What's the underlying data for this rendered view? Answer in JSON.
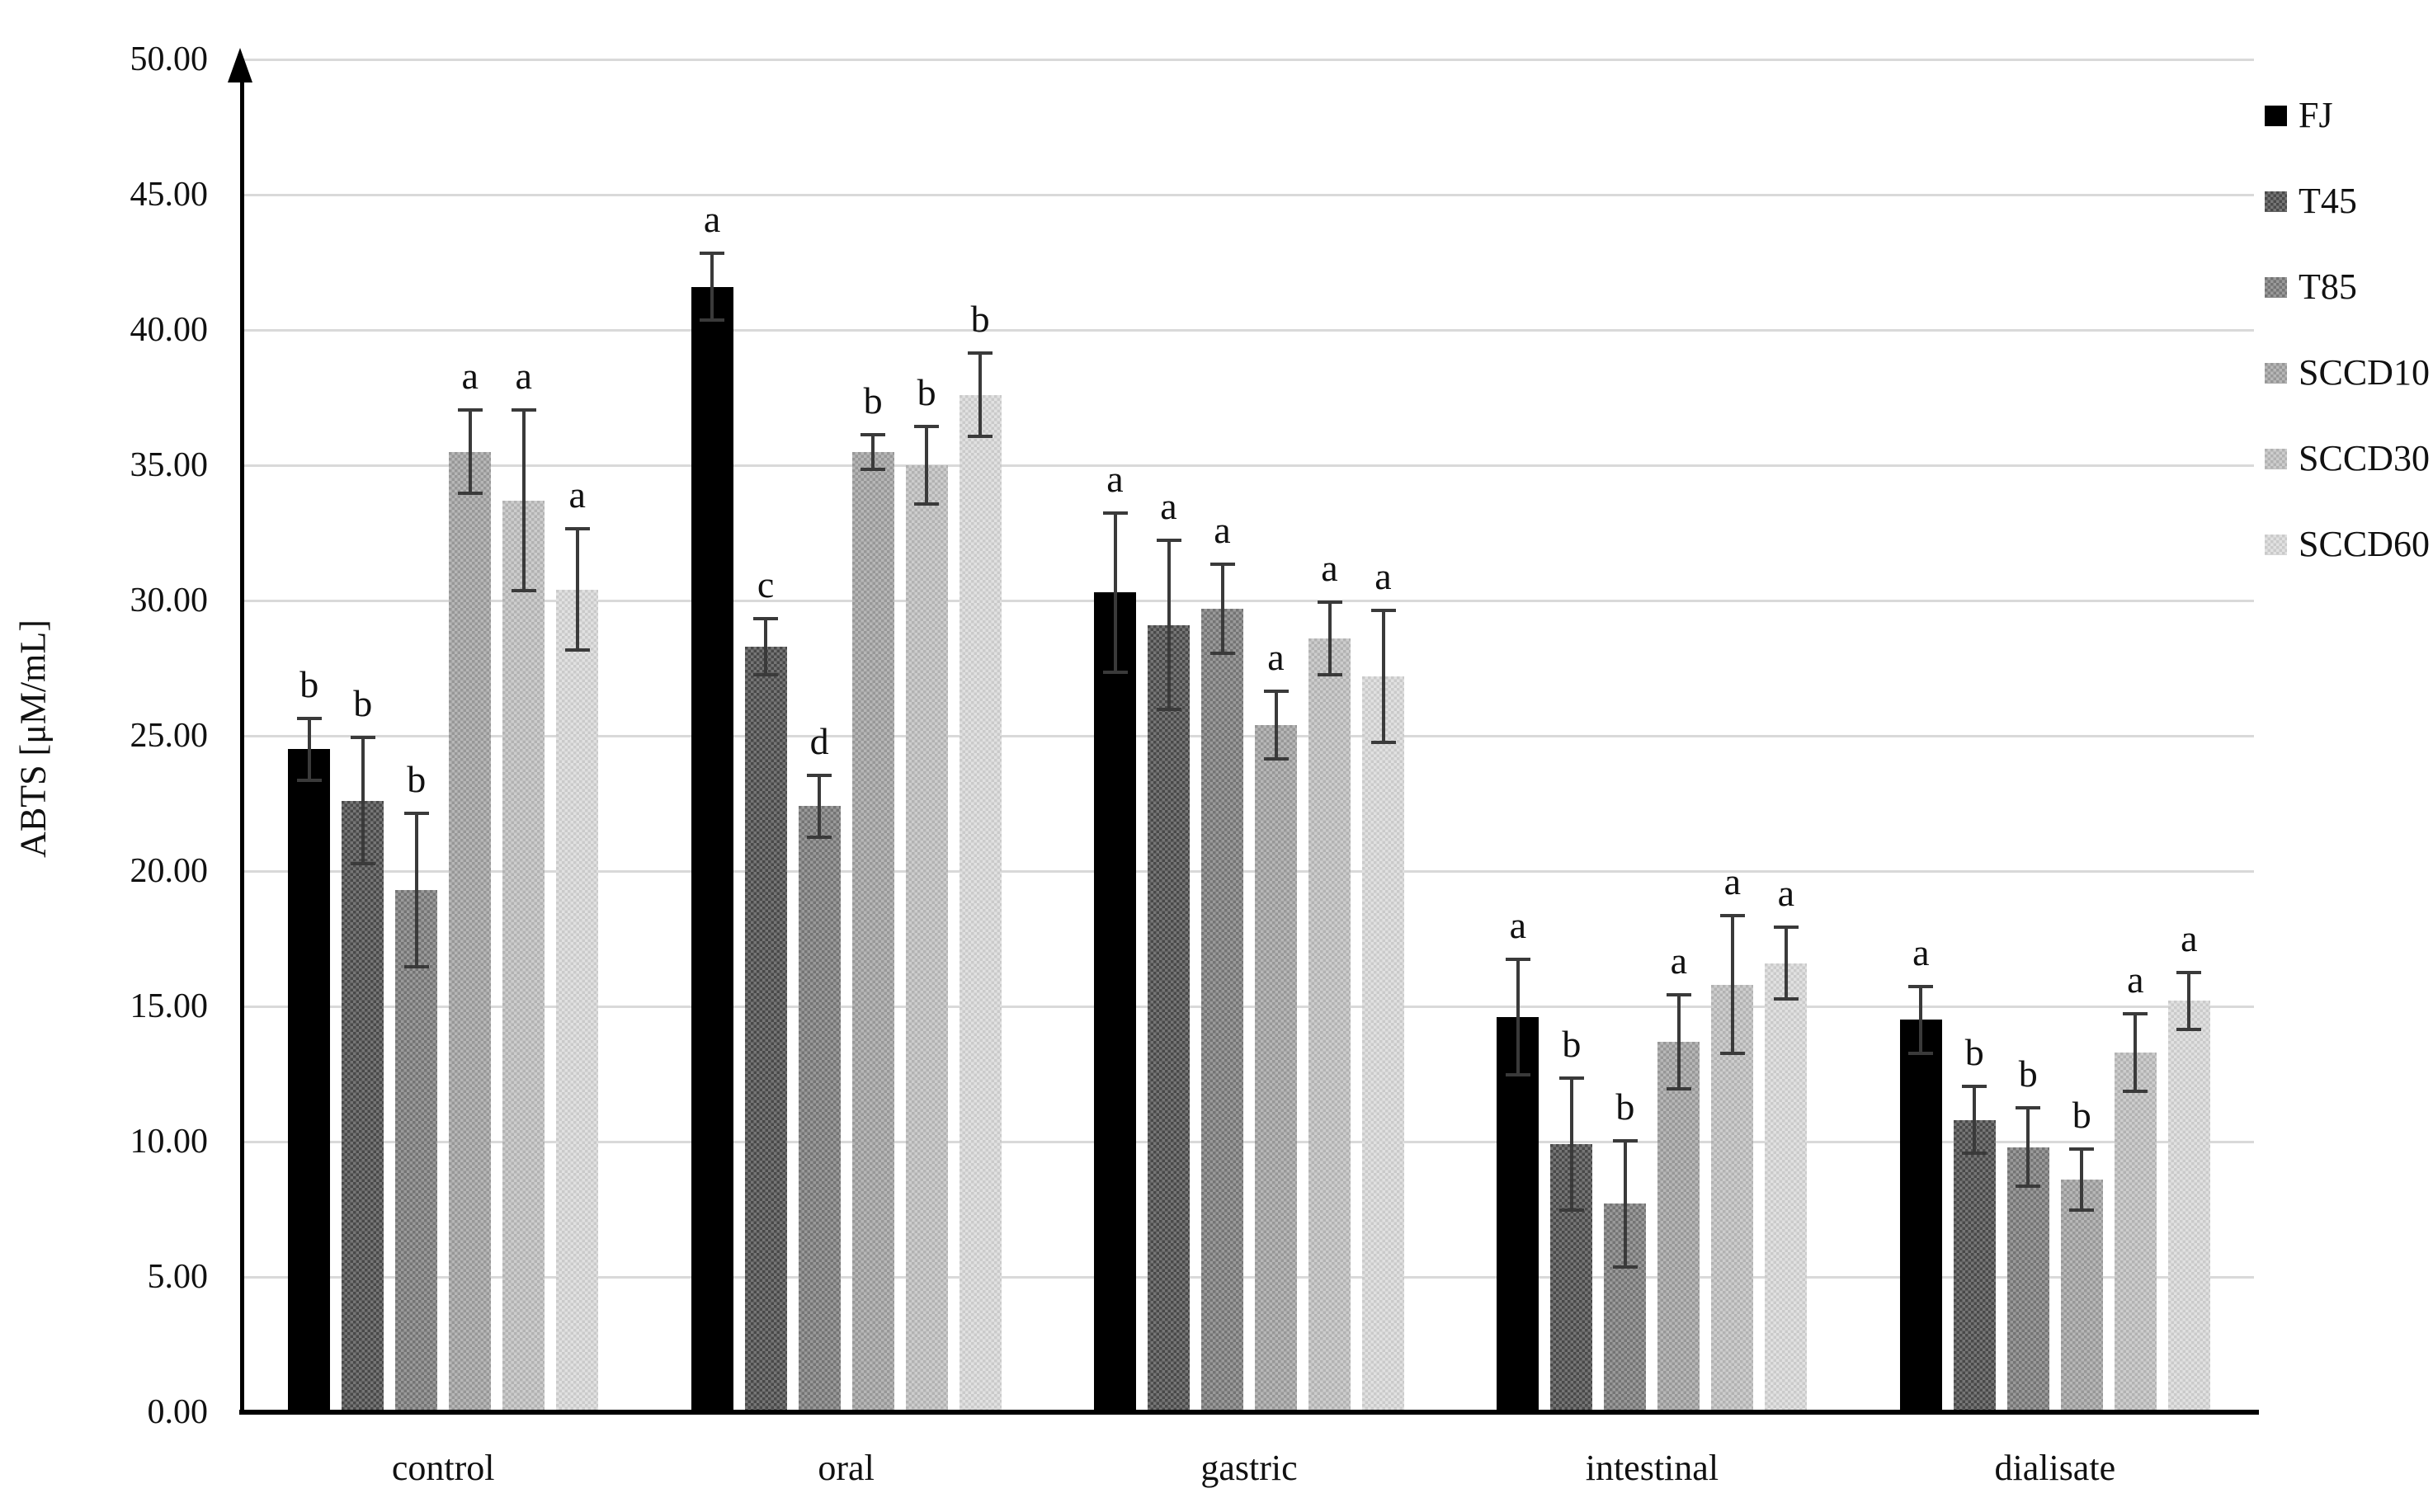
{
  "figure": {
    "background": "#ffffff",
    "axis_color": "#000000",
    "gridline_color": "#d9d9d9",
    "error_bar_color": "#3a3a3a",
    "text_color": "#111111"
  },
  "chart_data": {
    "type": "bar",
    "title": "",
    "xlabel": "",
    "ylabel": "ABTS [μM/mL]",
    "ylim": [
      0,
      50
    ],
    "ytick_step": 5,
    "yticks": [
      "0.00",
      "5.00",
      "10.00",
      "15.00",
      "20.00",
      "25.00",
      "30.00",
      "35.00",
      "40.00",
      "45.00",
      "50.00"
    ],
    "grid": "horizontal",
    "legend_position": "right",
    "categories": [
      "control",
      "oral",
      "gastric",
      "intestinal",
      "dialisate"
    ],
    "series": [
      {
        "name": "FJ",
        "color": "#000000",
        "pattern": "solid",
        "values": [
          24.5,
          41.6,
          30.3,
          14.6,
          14.5
        ],
        "errors": [
          1.2,
          1.3,
          3.0,
          2.2,
          1.3
        ],
        "letters": [
          "b",
          "a",
          "a",
          "a",
          "a"
        ]
      },
      {
        "name": "T45",
        "color": "#4f4f4f",
        "pattern": "checker",
        "values": [
          22.6,
          28.3,
          29.1,
          9.9,
          10.8
        ],
        "errors": [
          2.4,
          1.1,
          3.2,
          2.5,
          1.3
        ],
        "letters": [
          "b",
          "c",
          "a",
          "b",
          "b"
        ]
      },
      {
        "name": "T85",
        "color": "#7d7d7d",
        "pattern": "checker",
        "values": [
          19.3,
          22.4,
          29.7,
          7.7,
          9.8
        ],
        "errors": [
          2.9,
          1.2,
          1.7,
          2.4,
          1.5
        ],
        "letters": [
          "b",
          "d",
          "a",
          "b",
          "b"
        ]
      },
      {
        "name": "SCCD10",
        "color": "#a3a3a3",
        "pattern": "checker",
        "values": [
          35.5,
          35.5,
          25.4,
          13.7,
          8.6
        ],
        "errors": [
          1.6,
          0.7,
          1.3,
          1.8,
          1.2
        ],
        "letters": [
          "a",
          "b",
          "a",
          "a",
          "b"
        ]
      },
      {
        "name": "SCCD30",
        "color": "#bfbfbf",
        "pattern": "checker",
        "values": [
          33.7,
          35.0,
          28.6,
          15.8,
          13.3
        ],
        "errors": [
          3.4,
          1.5,
          1.4,
          2.6,
          1.5
        ],
        "letters": [
          "a",
          "b",
          "a",
          "a",
          "a"
        ]
      },
      {
        "name": "SCCD60",
        "color": "#d9d9d9",
        "pattern": "checker",
        "values": [
          30.4,
          37.6,
          27.2,
          16.6,
          15.2
        ],
        "errors": [
          2.3,
          1.6,
          2.5,
          1.4,
          1.1
        ],
        "letters": [
          "a",
          "b",
          "a",
          "a",
          "a"
        ]
      }
    ]
  }
}
